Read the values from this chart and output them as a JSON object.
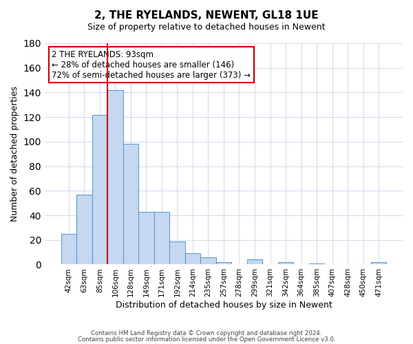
{
  "title": "2, THE RYELANDS, NEWENT, GL18 1UE",
  "subtitle": "Size of property relative to detached houses in Newent",
  "xlabel": "Distribution of detached houses by size in Newent",
  "ylabel": "Number of detached properties",
  "bar_values": [
    25,
    57,
    122,
    142,
    98,
    43,
    43,
    19,
    9,
    6,
    2,
    0,
    4,
    0,
    2,
    0,
    1,
    0,
    0,
    0,
    2
  ],
  "bar_labels": [
    "42sqm",
    "63sqm",
    "85sqm",
    "106sqm",
    "128sqm",
    "149sqm",
    "171sqm",
    "192sqm",
    "214sqm",
    "235sqm",
    "257sqm",
    "278sqm",
    "299sqm",
    "321sqm",
    "342sqm",
    "364sqm",
    "385sqm",
    "407sqm",
    "428sqm",
    "450sqm",
    "471sqm"
  ],
  "ylim": [
    0,
    180
  ],
  "yticks": [
    0,
    20,
    40,
    60,
    80,
    100,
    120,
    140,
    160,
    180
  ],
  "bar_color": "#c5d8f0",
  "bar_edge_color": "#5b9bd5",
  "vline_color": "#cc0000",
  "vline_x": 2.5,
  "annotation_text": "2 THE RYELANDS: 93sqm\n← 28% of detached houses are smaller (146)\n72% of semi-detached houses are larger (373) →",
  "footer_line1": "Contains HM Land Registry data © Crown copyright and database right 2024.",
  "footer_line2": "Contains public sector information licensed under the Open Government Licence v3.0.",
  "background_color": "#ffffff",
  "grid_color": "#d0d8ea"
}
